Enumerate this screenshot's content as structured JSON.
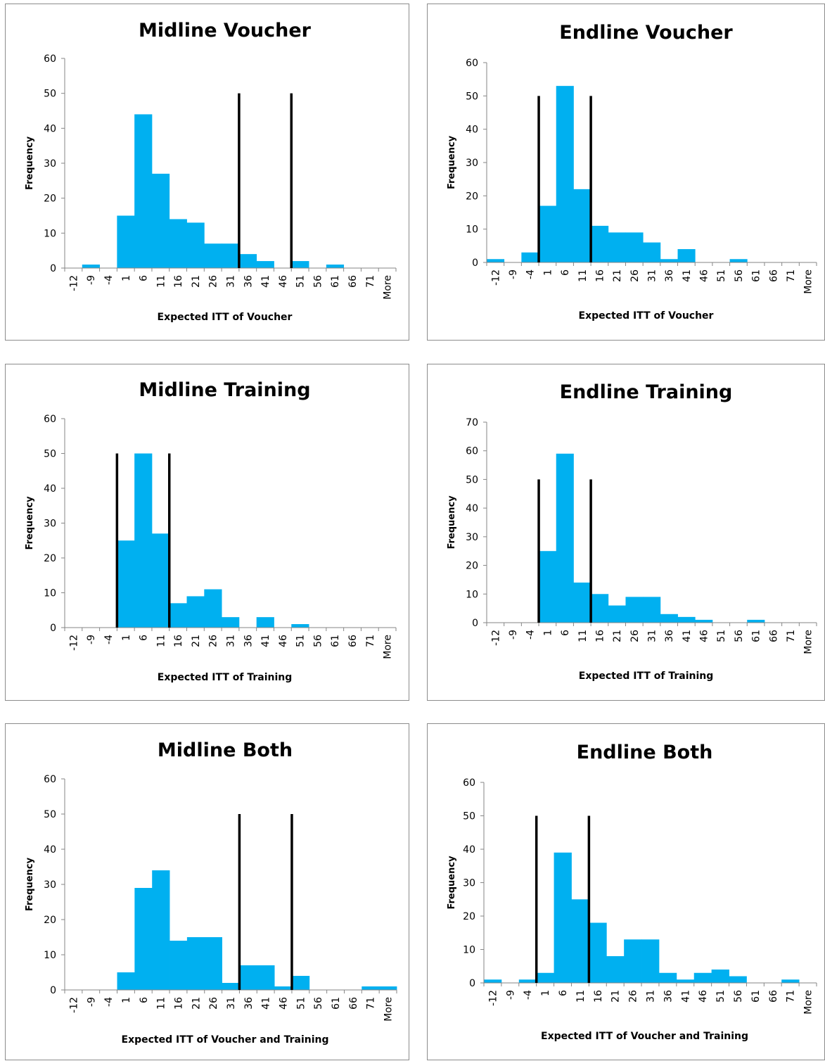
{
  "colors": {
    "bar": "#00b0f0",
    "marker": "#000000",
    "axis": "#868686",
    "border": "#8c8c8c"
  },
  "chart_data": [
    {
      "type": "bar",
      "title": "Midline Voucher",
      "xlabel": "Expected ITT of Voucher",
      "ylabel": "Frequency",
      "ylim": [
        0,
        60
      ],
      "yticks": [
        0,
        10,
        20,
        30,
        40,
        50,
        60
      ],
      "categories": [
        "-12",
        "-9",
        "-4",
        "1",
        "6",
        "11",
        "16",
        "21",
        "26",
        "31",
        "36",
        "41",
        "46",
        "51",
        "56",
        "61",
        "66",
        "71",
        "More"
      ],
      "values": [
        0,
        1,
        0,
        15,
        44,
        27,
        14,
        13,
        7,
        7,
        4,
        2,
        0,
        2,
        0,
        1,
        0,
        0,
        0
      ],
      "reference_lines": [
        {
          "at_boundary": 10,
          "height": 50
        },
        {
          "at_boundary": 13,
          "height": 50
        }
      ],
      "grid": false,
      "legend": "none"
    },
    {
      "type": "bar",
      "title": "Endline Voucher",
      "xlabel": "Expected ITT of Voucher",
      "ylabel": "Frequency",
      "ylim": [
        0,
        60
      ],
      "yticks": [
        0,
        10,
        20,
        30,
        40,
        50,
        60
      ],
      "categories": [
        "-12",
        "-9",
        "-4",
        "1",
        "6",
        "11",
        "16",
        "21",
        "26",
        "31",
        "36",
        "41",
        "46",
        "51",
        "56",
        "61",
        "66",
        "71",
        "More"
      ],
      "values": [
        1,
        0,
        3,
        17,
        53,
        22,
        11,
        9,
        9,
        6,
        1,
        4,
        0,
        0,
        1,
        0,
        0,
        0,
        0
      ],
      "reference_lines": [
        {
          "at_boundary": 3,
          "height": 50
        },
        {
          "at_boundary": 6,
          "height": 50
        }
      ],
      "grid": false,
      "legend": "none"
    },
    {
      "type": "bar",
      "title": "Midline Training",
      "xlabel": "Expected ITT of Training",
      "ylabel": "Frequency",
      "ylim": [
        0,
        60
      ],
      "yticks": [
        0,
        10,
        20,
        30,
        40,
        50,
        60
      ],
      "categories": [
        "-12",
        "-9",
        "-4",
        "1",
        "6",
        "11",
        "16",
        "21",
        "26",
        "31",
        "36",
        "41",
        "46",
        "51",
        "56",
        "61",
        "66",
        "71",
        "More"
      ],
      "values": [
        0,
        0,
        0,
        25,
        50,
        27,
        7,
        9,
        11,
        3,
        0,
        3,
        0,
        1,
        0,
        0,
        0,
        0,
        0
      ],
      "reference_lines": [
        {
          "at_boundary": 3,
          "height": 50
        },
        {
          "at_boundary": 6,
          "height": 50
        }
      ],
      "grid": false,
      "legend": "none"
    },
    {
      "type": "bar",
      "title": "Endline Training",
      "xlabel": "Expected ITT of Training",
      "ylabel": "Frequency",
      "ylim": [
        0,
        70
      ],
      "yticks": [
        0,
        10,
        20,
        30,
        40,
        50,
        60,
        70
      ],
      "categories": [
        "-12",
        "-9",
        "-4",
        "1",
        "6",
        "11",
        "16",
        "21",
        "26",
        "31",
        "36",
        "41",
        "46",
        "51",
        "56",
        "61",
        "66",
        "71",
        "More"
      ],
      "values": [
        0,
        0,
        0,
        25,
        59,
        14,
        10,
        6,
        9,
        9,
        3,
        2,
        1,
        0,
        0,
        1,
        0,
        0,
        0
      ],
      "reference_lines": [
        {
          "at_boundary": 3,
          "height": 50
        },
        {
          "at_boundary": 6,
          "height": 50
        }
      ],
      "grid": false,
      "legend": "none"
    },
    {
      "type": "bar",
      "title": "Midline Both",
      "xlabel": "Expected ITT of Voucher and Training",
      "ylabel": "Frequency",
      "ylim": [
        0,
        60
      ],
      "yticks": [
        0,
        10,
        20,
        30,
        40,
        50,
        60
      ],
      "categories": [
        "-12",
        "-9",
        "-4",
        "1",
        "6",
        "11",
        "16",
        "21",
        "26",
        "31",
        "36",
        "41",
        "46",
        "51",
        "56",
        "61",
        "66",
        "71",
        "More"
      ],
      "values": [
        0,
        0,
        0,
        5,
        29,
        34,
        14,
        15,
        15,
        2,
        7,
        7,
        1,
        4,
        0,
        0,
        0,
        1,
        1
      ],
      "reference_lines": [
        {
          "at_boundary": 10,
          "height": 50
        },
        {
          "at_boundary": 13,
          "height": 50
        }
      ],
      "grid": false,
      "legend": "none"
    },
    {
      "type": "bar",
      "title": "Endline Both",
      "xlabel": "Expected ITT of Voucher and Training",
      "ylabel": "Frequency",
      "ylim": [
        0,
        60
      ],
      "yticks": [
        0,
        10,
        20,
        30,
        40,
        50,
        60
      ],
      "categories": [
        "-12",
        "-9",
        "-4",
        "1",
        "6",
        "11",
        "16",
        "21",
        "26",
        "31",
        "36",
        "41",
        "46",
        "51",
        "56",
        "61",
        "66",
        "71",
        "More"
      ],
      "values": [
        1,
        0,
        1,
        3,
        39,
        25,
        18,
        8,
        13,
        13,
        3,
        1,
        3,
        4,
        2,
        0,
        0,
        1,
        0
      ],
      "reference_lines": [
        {
          "at_boundary": 3,
          "height": 50
        },
        {
          "at_boundary": 6,
          "height": 50
        }
      ],
      "grid": false,
      "legend": "none"
    }
  ]
}
